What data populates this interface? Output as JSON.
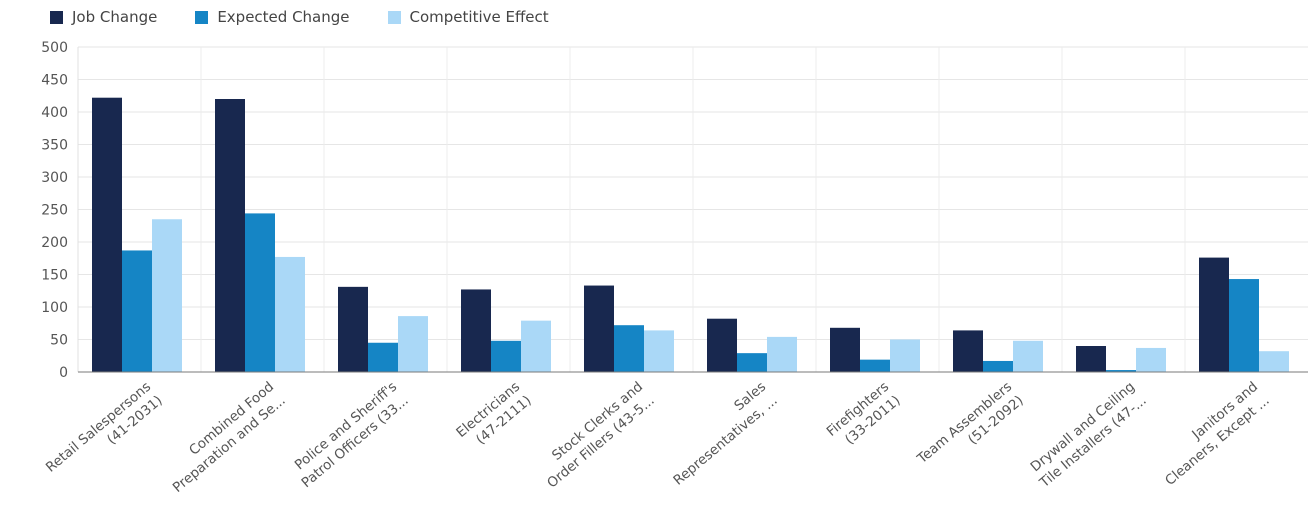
{
  "legend": [
    {
      "label": "Job Change",
      "color": "#18284f"
    },
    {
      "label": "Expected Change",
      "color": "#1585c5"
    },
    {
      "label": "Competitive Effect",
      "color": "#aad8f7"
    }
  ],
  "chart_data": {
    "type": "bar",
    "categories": [
      [
        "Retail Salespersons",
        "(41-2031)"
      ],
      [
        "Combined Food",
        "Preparation and Se..."
      ],
      [
        "Police and Sheriff's",
        "Patrol Officers (33..."
      ],
      [
        "Electricians",
        "(47-2111)"
      ],
      [
        "Stock Clerks and",
        "Order Fillers (43-5..."
      ],
      [
        "Sales",
        "Representatives, ..."
      ],
      [
        "Firefighters",
        "(33-2011)"
      ],
      [
        "Team Assemblers",
        "(51-2092)"
      ],
      [
        "Drywall and Ceiling",
        "Tile Installers (47-..."
      ],
      [
        "Janitors and",
        "Cleaners, Except ..."
      ]
    ],
    "series": [
      {
        "name": "Job Change",
        "color": "#18284f",
        "values": [
          422,
          420,
          131,
          127,
          133,
          82,
          68,
          64,
          40,
          176
        ]
      },
      {
        "name": "Expected Change",
        "color": "#1585c5",
        "values": [
          187,
          244,
          45,
          48,
          72,
          29,
          19,
          17,
          3,
          143
        ]
      },
      {
        "name": "Competitive Effect",
        "color": "#aad8f7",
        "values": [
          235,
          177,
          86,
          79,
          64,
          54,
          50,
          48,
          37,
          32
        ]
      }
    ],
    "y_ticks": [
      0,
      50,
      100,
      150,
      200,
      250,
      300,
      350,
      400,
      450,
      500
    ],
    "ylim": [
      0,
      500
    ],
    "grid": true,
    "legend_position": "top-left"
  }
}
